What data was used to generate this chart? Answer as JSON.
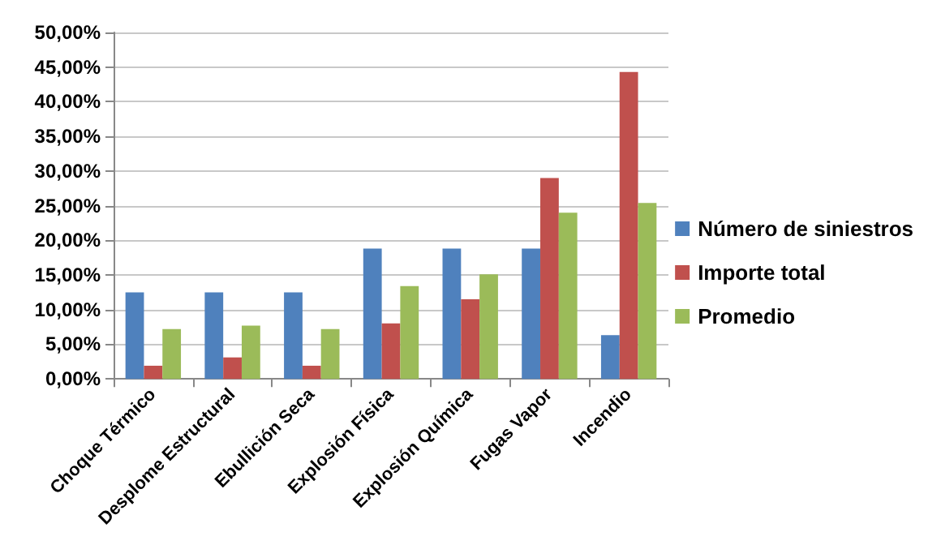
{
  "chart_data": {
    "type": "bar",
    "categories": [
      "Choque Térmico",
      "Desplome Estructural",
      "Ebullición Seca",
      "Explosión Física",
      "Explosión Química",
      "Fugas Vapor",
      "Incendio"
    ],
    "series": [
      {
        "name": "Número de siniestros",
        "color": "#4f81bd",
        "values": [
          12.5,
          12.5,
          12.5,
          18.8,
          18.8,
          18.8,
          6.3
        ]
      },
      {
        "name": "Importe total",
        "color": "#c0504d",
        "values": [
          1.9,
          3.1,
          1.9,
          8.0,
          11.5,
          29.0,
          44.3
        ]
      },
      {
        "name": "Promedio",
        "color": "#9bbb59",
        "values": [
          7.2,
          7.7,
          7.2,
          13.4,
          15.1,
          24.0,
          25.4
        ]
      }
    ],
    "ylim": [
      0,
      50
    ],
    "yticks": [
      {
        "value": 0,
        "label": "0,00%"
      },
      {
        "value": 5,
        "label": "5,00%"
      },
      {
        "value": 10,
        "label": "10,00%"
      },
      {
        "value": 15,
        "label": "15,00%"
      },
      {
        "value": 20,
        "label": "20,00%"
      },
      {
        "value": 25,
        "label": "25,00%"
      },
      {
        "value": 30,
        "label": "30,00%"
      },
      {
        "value": 35,
        "label": "35,00%"
      },
      {
        "value": 40,
        "label": "40,00%"
      },
      {
        "value": 45,
        "label": "45,00%"
      },
      {
        "value": 50,
        "label": "50,00%"
      }
    ],
    "grid": "y",
    "legend": "right"
  }
}
